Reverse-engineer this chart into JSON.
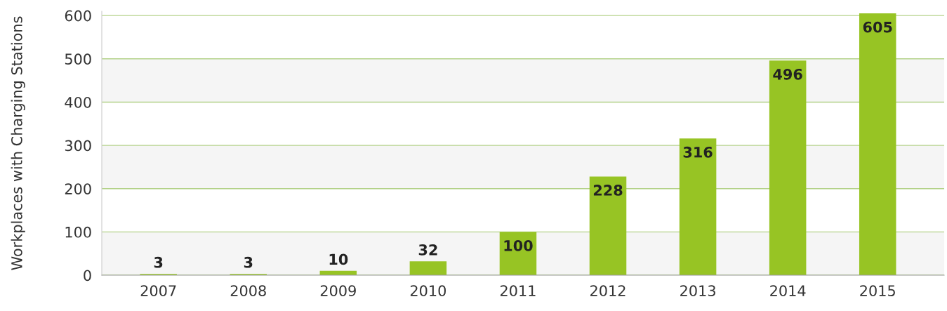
{
  "chart_data": {
    "type": "bar",
    "ylabel": "Workplaces with Charging Stations",
    "categories": [
      "2007",
      "2008",
      "2009",
      "2010",
      "2011",
      "2012",
      "2013",
      "2014",
      "2015"
    ],
    "values": [
      3,
      3,
      10,
      32,
      100,
      228,
      316,
      496,
      605
    ],
    "color": "#97c424",
    "ylim": [
      0,
      610
    ],
    "yticks": [
      0,
      100,
      200,
      300,
      400,
      500,
      600
    ],
    "grid": "y",
    "data_labels": true,
    "bands": [
      {
        "axis": "y",
        "from": 0,
        "to": 100,
        "color": "#f5f5f5"
      },
      {
        "axis": "y",
        "from": 200,
        "to": 300,
        "color": "#f5f5f5"
      },
      {
        "axis": "y",
        "from": 400,
        "to": 500,
        "color": "#f5f5f5"
      }
    ]
  }
}
